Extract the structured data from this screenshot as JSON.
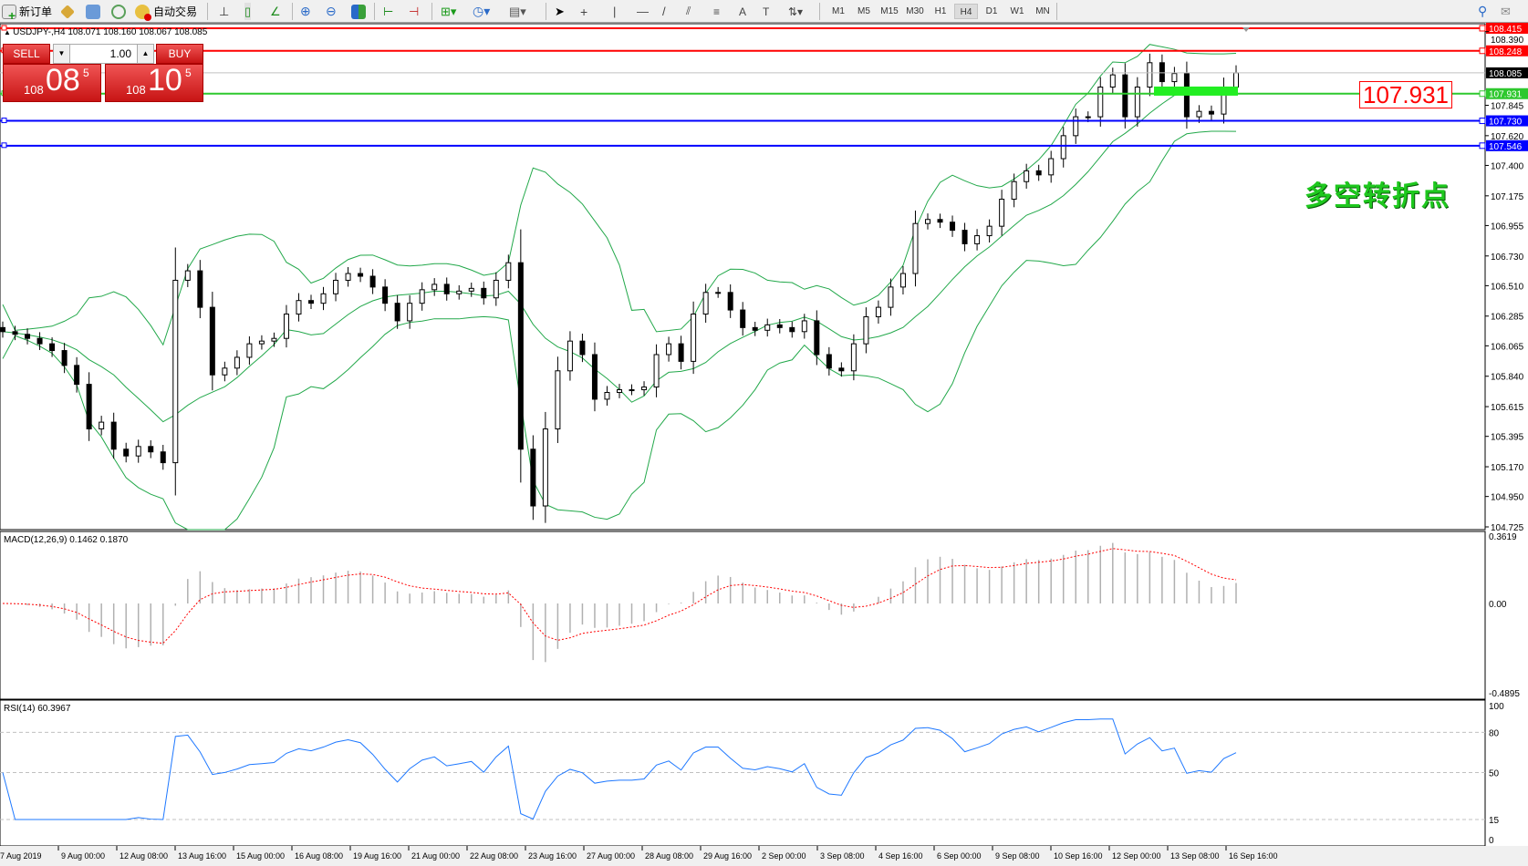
{
  "toolbar": {
    "new_order": "新订单",
    "auto_trading": "自动交易",
    "timeframes": [
      "M1",
      "M5",
      "M15",
      "M30",
      "H1",
      "H4",
      "D1",
      "W1",
      "MN"
    ],
    "active_timeframe": "H4"
  },
  "symbol_header": "USDJPY-,H4  108.071 108.160 108.067 108.085",
  "trade_panel": {
    "sell_label": "SELL",
    "buy_label": "BUY",
    "lot": "1.00",
    "sell_big": "108",
    "sell_pips": "08",
    "sell_frac": "5",
    "buy_big": "108",
    "buy_pips": "10",
    "buy_frac": "5"
  },
  "annotation_price": "107.931",
  "annotation_text": "多空转折点",
  "colors": {
    "bull_body": "#ffffff",
    "bear_body": "#000000",
    "bollinger": "#22a84a",
    "macd_signal": "#ff0000",
    "macd_hist": "#b0b0b0",
    "rsi": "#1e78ff",
    "resistance": "#ff0000",
    "support": "#0000ff",
    "pivot": "#2ec82e"
  },
  "chart_data": {
    "type": "candlestick",
    "symbol": "USDJPY-",
    "timeframe": "H4",
    "ylim": [
      104.725,
      108.415
    ],
    "price_ticks": [
      "108.390",
      "107.845",
      "107.620",
      "107.400",
      "107.175",
      "106.955",
      "106.730",
      "106.510",
      "106.285",
      "106.065",
      "105.840",
      "105.615",
      "105.395",
      "105.170",
      "104.950",
      "104.725"
    ],
    "time_ticks": [
      "7 Aug 2019",
      "9 Aug 00:00",
      "12 Aug 08:00",
      "13 Aug 16:00",
      "15 Aug 00:00",
      "16 Aug 08:00",
      "19 Aug 16:00",
      "21 Aug 00:00",
      "22 Aug 08:00",
      "23 Aug 16:00",
      "27 Aug 00:00",
      "28 Aug 08:00",
      "29 Aug 16:00",
      "2 Sep 00:00",
      "3 Sep 08:00",
      "4 Sep 16:00",
      "6 Sep 00:00",
      "9 Sep 08:00",
      "10 Sep 16:00",
      "12 Sep 00:00",
      "13 Sep 08:00",
      "16 Sep 16:00"
    ],
    "close": [
      106.17,
      106.15,
      106.12,
      106.08,
      106.03,
      105.92,
      105.78,
      105.45,
      105.5,
      105.3,
      105.25,
      105.32,
      105.28,
      105.2,
      106.55,
      106.62,
      106.35,
      105.85,
      105.9,
      105.98,
      106.08,
      106.1,
      106.12,
      106.3,
      106.4,
      106.38,
      106.45,
      106.55,
      106.6,
      106.58,
      106.5,
      106.38,
      106.25,
      106.38,
      106.48,
      106.52,
      106.45,
      106.47,
      106.49,
      106.42,
      106.55,
      106.68,
      105.3,
      104.88,
      105.45,
      105.88,
      106.1,
      106.0,
      105.67,
      105.72,
      105.74,
      105.74,
      105.76,
      106.0,
      106.08,
      105.95,
      106.3,
      106.46,
      106.46,
      106.33,
      106.2,
      106.18,
      106.22,
      106.2,
      106.17,
      106.25,
      106.0,
      105.9,
      105.88,
      106.08,
      106.28,
      106.35,
      106.5,
      106.6,
      106.97,
      107.0,
      106.98,
      106.92,
      106.82,
      106.88,
      106.95,
      107.15,
      107.28,
      107.36,
      107.33,
      107.45,
      107.62,
      107.76,
      107.76,
      107.98,
      108.07,
      107.76,
      107.98,
      108.16,
      108.02,
      108.08,
      107.76,
      107.8,
      107.78,
      107.98,
      108.085
    ],
    "horizontal_lines": [
      {
        "price": "108.415",
        "color": "#ff0000"
      },
      {
        "price": "108.248",
        "color": "#ff0000"
      },
      {
        "price": "108.085",
        "color": "#000000",
        "kind": "bid"
      },
      {
        "price": "107.931",
        "color": "#2ec82e"
      },
      {
        "price": "107.730",
        "color": "#0000ff"
      },
      {
        "price": "107.546",
        "color": "#0000ff"
      }
    ],
    "pivot_zone": {
      "price": 107.95
    },
    "indicators": {
      "bollinger": true,
      "macd": {
        "label": "MACD(12,26,9) 0.1462 0.1870",
        "ylim": [
          -0.4895,
          0.3619
        ],
        "ticks": [
          "0.3619",
          "0.00",
          "-0.4895"
        ]
      },
      "rsi": {
        "label": "RSI(14) 60.3967",
        "levels": [
          "80",
          "50",
          "15"
        ],
        "ticks": [
          "100",
          "80",
          "50",
          "15",
          "0"
        ]
      }
    }
  }
}
